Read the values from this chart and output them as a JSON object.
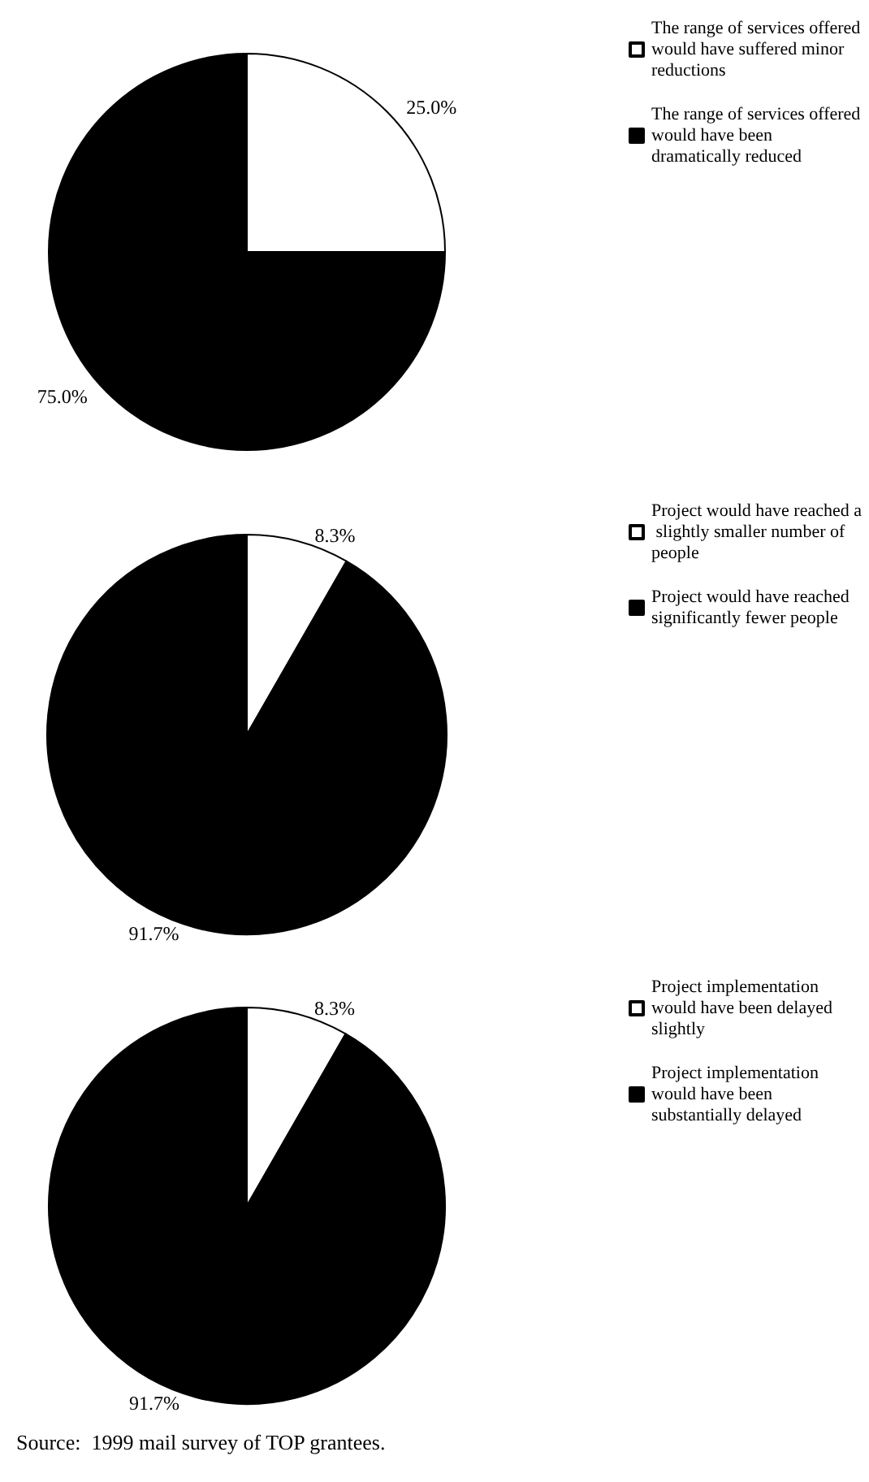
{
  "chart_data": [
    {
      "type": "pie",
      "categories": [
        "The range of services offered would have suffered minor reductions",
        "The range of services offered would have been dramatically reduced"
      ],
      "values": [
        25,
        75
      ],
      "colors": [
        "#ffffff",
        "#000000"
      ],
      "value_labels": [
        "25.0%",
        "75.0%"
      ],
      "legend": "right"
    },
    {
      "type": "pie",
      "categories": [
        "Project would have reached a slightly smaller number of people",
        "Project would have reached significantly fewer people"
      ],
      "values": [
        8.3,
        91.7
      ],
      "colors": [
        "#ffffff",
        "#000000"
      ],
      "value_labels": [
        "8.3%",
        "91.7%"
      ],
      "legend": "right"
    },
    {
      "type": "pie",
      "categories": [
        "Project implementation would have been delayed slightly",
        "Project implementation would have been substantially delayed"
      ],
      "values": [
        8.3,
        91.7
      ],
      "colors": [
        "#ffffff",
        "#000000"
      ],
      "value_labels": [
        "8.3%",
        "91.7%"
      ],
      "legend": "right",
      "annotations": [
        "Source:  1999 mail survey of TOP grantees."
      ]
    }
  ]
}
